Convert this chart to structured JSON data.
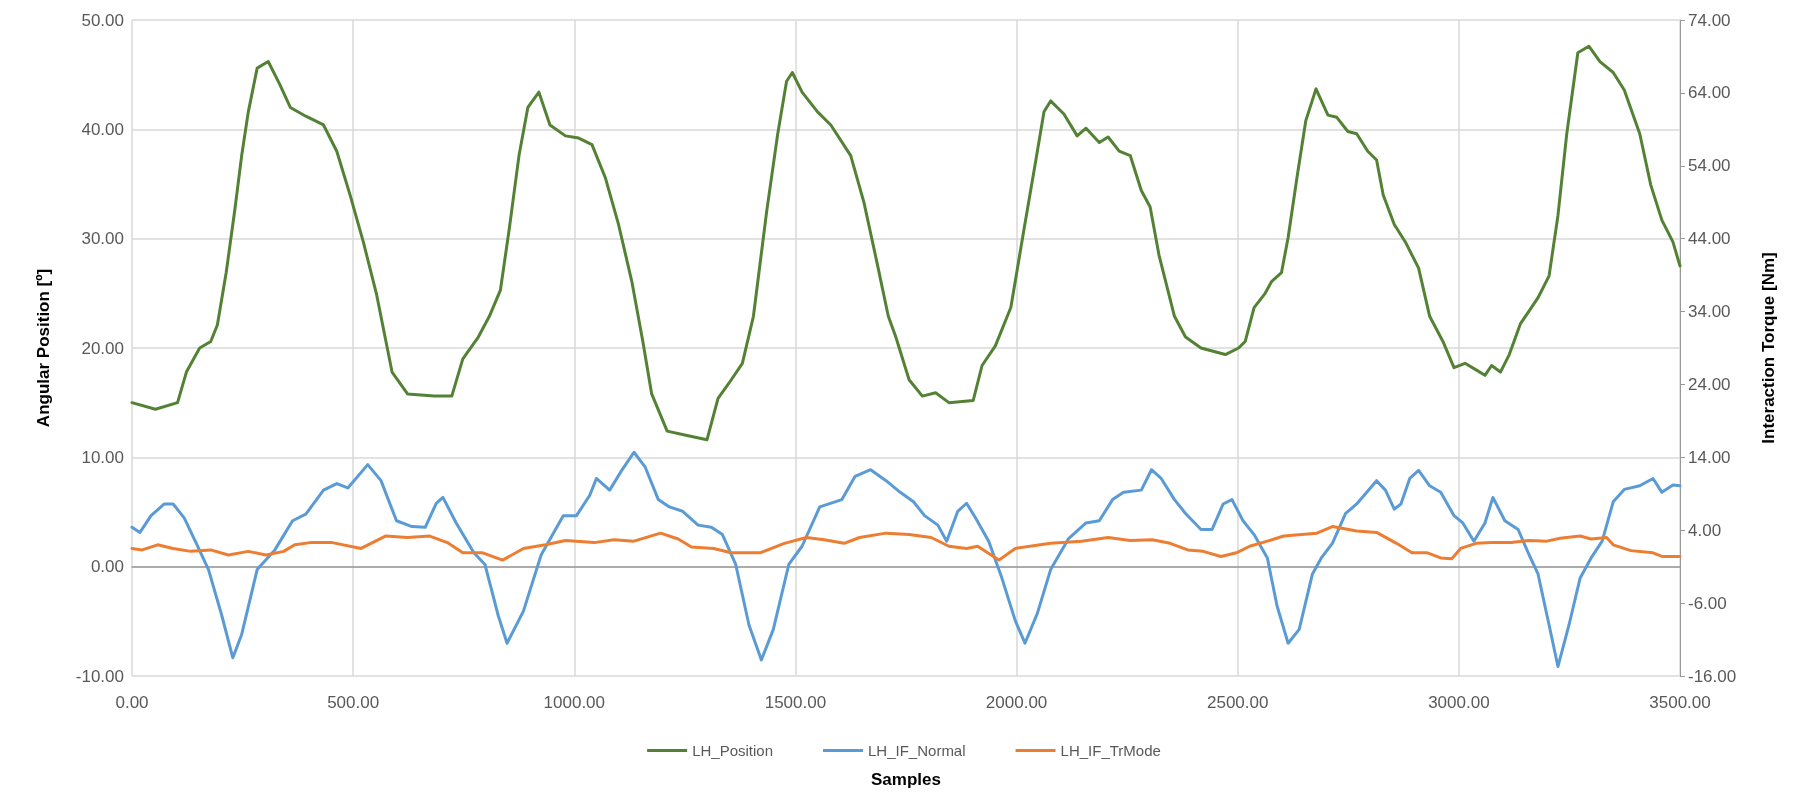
{
  "chart_data": {
    "type": "line",
    "xlabel": "Samples",
    "ylabel": "Angular Position [º]",
    "y2label": "Interaction Torque [Nm]",
    "xlim": [
      0,
      3500
    ],
    "xticks": [
      {
        "value": 0,
        "label": "0.00"
      },
      {
        "value": 500,
        "label": "500.00"
      },
      {
        "value": 1000,
        "label": "1000.00"
      },
      {
        "value": 1500,
        "label": "1500.00"
      },
      {
        "value": 2000,
        "label": "2000.00"
      },
      {
        "value": 2500,
        "label": "2500.00"
      },
      {
        "value": 3000,
        "label": "3000.00"
      },
      {
        "value": 3500,
        "label": "3500.00"
      }
    ],
    "ylim": [
      -10,
      50
    ],
    "yticks": [
      {
        "value": -10,
        "label": "-10.00"
      },
      {
        "value": 0,
        "label": "0.00"
      },
      {
        "value": 10,
        "label": "10.00"
      },
      {
        "value": 20,
        "label": "20.00"
      },
      {
        "value": 30,
        "label": "30.00"
      },
      {
        "value": 40,
        "label": "40.00"
      },
      {
        "value": 50,
        "label": "50.00"
      }
    ],
    "y2lim": [
      -16,
      74
    ],
    "y2ticks": [
      {
        "value": -16,
        "label": "-16.00"
      },
      {
        "value": -6,
        "label": "-6.00"
      },
      {
        "value": 4,
        "label": "4.00"
      },
      {
        "value": 14,
        "label": "14.00"
      },
      {
        "value": 24,
        "label": "24.00"
      },
      {
        "value": 34,
        "label": "34.00"
      },
      {
        "value": 44,
        "label": "44.00"
      },
      {
        "value": 54,
        "label": "54.00"
      },
      {
        "value": 64,
        "label": "64.00"
      },
      {
        "value": 74,
        "label": "74.00"
      }
    ],
    "grid": true,
    "legend": "bottom",
    "marker": "none",
    "line_style": "solid",
    "series": [
      {
        "name": "LH_Position",
        "color": "#548235",
        "x": [
          0,
          53,
          103,
          123,
          153,
          178,
          193,
          213,
          233,
          248,
          263,
          283,
          308,
          333,
          358,
          393,
          433,
          463,
          493,
          523,
          553,
          588,
          623,
          683,
          723,
          748,
          783,
          808,
          833,
          853,
          875,
          895,
          920,
          945,
          980,
          1010,
          1040,
          1070,
          1100,
          1130,
          1155,
          1175,
          1210,
          1255,
          1300,
          1325,
          1350,
          1380,
          1405,
          1435,
          1460,
          1480,
          1493,
          1515,
          1550,
          1580,
          1625,
          1655,
          1685,
          1710,
          1727,
          1757,
          1787,
          1817,
          1847,
          1902,
          1922,
          1952,
          1987,
          2017,
          2042,
          2062,
          2077,
          2107,
          2137,
          2157,
          2187,
          2207,
          2232,
          2257,
          2282,
          2302,
          2322,
          2357,
          2382,
          2417,
          2472,
          2502,
          2517,
          2537,
          2562,
          2577,
          2599,
          2614,
          2634,
          2654,
          2677,
          2704,
          2724,
          2749,
          2769,
          2794,
          2814,
          2829,
          2854,
          2879,
          2909,
          2934,
          2964,
          2989,
          3014,
          3039,
          3059,
          3074,
          3094,
          3114,
          3139,
          3159,
          3179,
          3204,
          3224,
          3244,
          3269,
          3294,
          3319,
          3349,
          3374,
          3409,
          3434,
          3459,
          3484,
          3500
        ],
        "values": [
          15.0,
          14.4,
          15.0,
          17.8,
          20.0,
          20.6,
          22.1,
          26.9,
          32.8,
          37.6,
          41.6,
          45.6,
          46.2,
          44.2,
          42.0,
          41.2,
          40.4,
          38.0,
          34.0,
          29.7,
          24.9,
          17.8,
          15.8,
          15.6,
          15.6,
          19.0,
          21.0,
          22.9,
          25.3,
          30.9,
          37.6,
          42.0,
          43.4,
          40.4,
          39.4,
          39.2,
          38.6,
          35.6,
          31.3,
          26.1,
          20.6,
          15.8,
          12.4,
          12.0,
          11.6,
          15.4,
          16.8,
          18.6,
          22.9,
          32.5,
          39.6,
          44.4,
          45.2,
          43.4,
          41.6,
          40.4,
          37.6,
          33.3,
          27.7,
          22.9,
          21.0,
          17.1,
          15.6,
          15.9,
          15.0,
          15.2,
          18.4,
          20.2,
          23.7,
          30.9,
          36.8,
          41.6,
          42.6,
          41.4,
          39.4,
          40.1,
          38.8,
          39.3,
          38.0,
          37.6,
          34.4,
          32.9,
          28.5,
          22.9,
          21.0,
          20.0,
          19.4,
          20.0,
          20.6,
          23.7,
          25.0,
          26.1,
          26.9,
          30.1,
          35.6,
          40.8,
          43.7,
          41.3,
          41.1,
          39.8,
          39.6,
          38.0,
          37.2,
          34.0,
          31.3,
          29.7,
          27.3,
          22.9,
          20.6,
          18.2,
          18.6,
          18.0,
          17.5,
          18.4,
          17.8,
          19.4,
          22.2,
          23.4,
          24.6,
          26.6,
          32.1,
          39.6,
          47.0,
          47.6,
          46.2,
          45.2,
          43.6,
          39.6,
          34.9,
          31.7,
          29.7,
          27.5
        ]
      },
      {
        "name": "LH_IF_Normal",
        "color": "#5b9bd5",
        "axis": "y2",
        "x": [
          0,
          18,
          43,
          73,
          93,
          118,
          143,
          173,
          203,
          228,
          248,
          283,
          323,
          363,
          393,
          433,
          463,
          488,
          533,
          563,
          598,
          633,
          663,
          688,
          703,
          733,
          773,
          798,
          828,
          848,
          885,
          925,
          975,
          1005,
          1035,
          1050,
          1080,
          1105,
          1135,
          1160,
          1190,
          1215,
          1245,
          1280,
          1310,
          1335,
          1365,
          1395,
          1423,
          1450,
          1485,
          1515,
          1555,
          1605,
          1635,
          1670,
          1705,
          1737,
          1767,
          1792,
          1822,
          1842,
          1867,
          1887,
          1907,
          1937,
          1967,
          1997,
          2019,
          2047,
          2077,
          2117,
          2157,
          2187,
          2217,
          2242,
          2282,
          2305,
          2327,
          2357,
          2382,
          2417,
          2442,
          2467,
          2487,
          2512,
          2537,
          2567,
          2589,
          2614,
          2639,
          2669,
          2689,
          2714,
          2744,
          2769,
          2814,
          2834,
          2854,
          2869,
          2889,
          2909,
          2934,
          2959,
          2989,
          3009,
          3034,
          3059,
          3077,
          3104,
          3134,
          3159,
          3179,
          3204,
          3224,
          3249,
          3274,
          3299,
          3324,
          3349,
          3374,
          3409,
          3439,
          3459,
          3484,
          3500
        ],
        "values": [
          4.4,
          3.7,
          6.0,
          7.6,
          7.6,
          5.7,
          2.5,
          -1.4,
          -7.7,
          -13.5,
          -10.3,
          -1.4,
          1.3,
          5.3,
          6.2,
          9.5,
          10.4,
          9.8,
          13.0,
          10.8,
          5.3,
          4.5,
          4.4,
          7.7,
          8.5,
          5.0,
          0.9,
          -0.7,
          -7.7,
          -11.5,
          -7.1,
          0.6,
          6.0,
          6.0,
          8.8,
          11.1,
          9.5,
          12.0,
          14.7,
          12.7,
          8.2,
          7.2,
          6.6,
          4.7,
          4.4,
          3.4,
          -0.7,
          -9.0,
          -13.8,
          -9.6,
          -0.7,
          1.8,
          7.2,
          8.2,
          11.4,
          12.3,
          10.8,
          9.2,
          7.9,
          6.0,
          4.7,
          2.5,
          6.6,
          7.7,
          5.7,
          2.5,
          -2.6,
          -8.4,
          -11.5,
          -7.4,
          -1.4,
          2.8,
          5.0,
          5.3,
          8.2,
          9.2,
          9.5,
          12.3,
          11.1,
          8.2,
          6.3,
          4.1,
          4.1,
          7.6,
          8.2,
          5.3,
          3.4,
          0.2,
          -6.4,
          -11.5,
          -9.6,
          -2.0,
          0.2,
          2.2,
          6.3,
          7.6,
          10.8,
          9.5,
          6.9,
          7.6,
          11.1,
          12.2,
          10.1,
          9.2,
          6.0,
          5.0,
          2.5,
          5.0,
          8.5,
          5.3,
          4.1,
          0.6,
          -2.0,
          -9.0,
          -14.7,
          -9.0,
          -2.6,
          0.2,
          2.5,
          7.9,
          9.6,
          10.1,
          11.1,
          9.2,
          10.2,
          10.1
        ]
      },
      {
        "name": "LH_IF_TrMode",
        "color": "#ed7d31",
        "axis": "y2",
        "x": [
          0,
          23,
          58,
          93,
          133,
          178,
          218,
          263,
          303,
          343,
          368,
          403,
          453,
          518,
          573,
          623,
          673,
          713,
          748,
          793,
          838,
          885,
          935,
          980,
          1045,
          1090,
          1135,
          1195,
          1235,
          1265,
          1315,
          1355,
          1420,
          1475,
          1525,
          1565,
          1610,
          1645,
          1705,
          1757,
          1807,
          1847,
          1887,
          1912,
          1960,
          1997,
          2077,
          2147,
          2207,
          2257,
          2307,
          2347,
          2387,
          2422,
          2462,
          2497,
          2527,
          2567,
          2604,
          2679,
          2714,
          2769,
          2814,
          2859,
          2894,
          2929,
          2959,
          2984,
          3004,
          3039,
          3074,
          3119,
          3159,
          3199,
          3229,
          3274,
          3299,
          3334,
          3349,
          3389,
          3439,
          3459,
          3500
        ],
        "values": [
          1.5,
          1.3,
          2.0,
          1.5,
          1.1,
          1.3,
          0.6,
          1.1,
          0.6,
          1.1,
          2.0,
          2.3,
          2.3,
          1.5,
          3.2,
          3.0,
          3.2,
          2.3,
          0.9,
          0.9,
          -0.1,
          1.5,
          2.0,
          2.6,
          2.3,
          2.7,
          2.5,
          3.6,
          2.8,
          1.7,
          1.5,
          0.9,
          0.9,
          2.2,
          3.0,
          2.7,
          2.2,
          3.0,
          3.6,
          3.4,
          3.0,
          1.8,
          1.5,
          1.8,
          -0.1,
          1.5,
          2.2,
          2.5,
          3.0,
          2.6,
          2.7,
          2.2,
          1.3,
          1.1,
          0.4,
          0.9,
          1.8,
          2.5,
          3.2,
          3.6,
          4.5,
          3.9,
          3.7,
          2.2,
          0.9,
          0.9,
          0.2,
          0.1,
          1.5,
          2.2,
          2.3,
          2.3,
          2.6,
          2.5,
          2.9,
          3.2,
          2.8,
          3.0,
          2.0,
          1.2,
          0.9,
          0.4,
          0.4
        ]
      }
    ]
  }
}
